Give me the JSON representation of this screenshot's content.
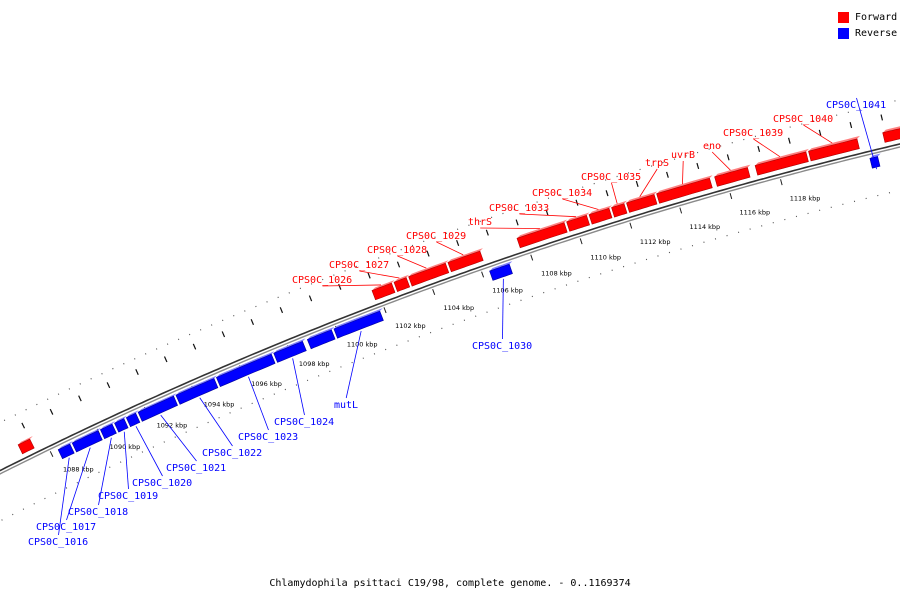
{
  "legend": {
    "forward": {
      "label": "Forward",
      "color": "#ff0000"
    },
    "reverse": {
      "label": "Reverse",
      "color": "#0000ff"
    }
  },
  "caption": "Chlamydophila psittaci C19/98, complete genome. - 0..1169374",
  "ruler": {
    "unit": "kbp",
    "ticks": [
      1088,
      1090,
      1092,
      1094,
      1096,
      1098,
      1100,
      1102,
      1104,
      1106,
      1108,
      1110,
      1112,
      1114,
      1116,
      1118
    ]
  },
  "features": [
    {
      "id": "CPS0C_1016",
      "label": "CPS0C_1016",
      "strand": "reverse",
      "start": 1088.3,
      "end": 1088.8
    },
    {
      "id": "CPS0C_1017",
      "label": "CPS0C_1017",
      "strand": "reverse",
      "start": 1088.9,
      "end": 1090.0
    },
    {
      "id": "CPS0C_1018",
      "label": "CPS0C_1018",
      "strand": "reverse",
      "start": 1090.1,
      "end": 1090.6
    },
    {
      "id": "CPS0C_1019",
      "label": "CPS0C_1019",
      "strand": "reverse",
      "start": 1090.7,
      "end": 1091.1
    },
    {
      "id": "CPS0C_1020",
      "label": "CPS0C_1020",
      "strand": "reverse",
      "start": 1091.2,
      "end": 1091.6
    },
    {
      "id": "CPS0C_1021",
      "label": "CPS0C_1021",
      "strand": "reverse",
      "start": 1091.7,
      "end": 1093.2
    },
    {
      "id": "CPS0C_1022",
      "label": "CPS0C_1022",
      "strand": "reverse",
      "start": 1093.3,
      "end": 1094.9
    },
    {
      "id": "CPS0C_1023",
      "label": "CPS0C_1023",
      "strand": "reverse",
      "start": 1095.0,
      "end": 1097.3
    },
    {
      "id": "CPS0C_1024",
      "label": "CPS0C_1024",
      "strand": "reverse",
      "start": 1097.4,
      "end": 1098.6
    },
    {
      "id": "CPS0C_1025",
      "label": "",
      "strand": "reverse",
      "start": 1098.8,
      "end": 1099.8
    },
    {
      "id": "mutL",
      "label": "mutL",
      "strand": "reverse",
      "start": 1099.9,
      "end": 1101.8
    },
    {
      "id": "CPS0C_1026",
      "label": "CPS0C_1026",
      "strand": "forward",
      "start": 1101.8,
      "end": 1102.6
    },
    {
      "id": "CPS0C_1027",
      "label": "CPS0C_1027",
      "strand": "forward",
      "start": 1102.7,
      "end": 1103.2
    },
    {
      "id": "CPS0C_1028",
      "label": "CPS0C_1028",
      "strand": "forward",
      "start": 1103.3,
      "end": 1104.8
    },
    {
      "id": "CPS0C_1029",
      "label": "CPS0C_1029",
      "strand": "forward",
      "start": 1104.9,
      "end": 1106.2
    },
    {
      "id": "CPS0C_1030",
      "label": "CPS0C_1030",
      "strand": "reverse",
      "start": 1106.3,
      "end": 1107.1
    },
    {
      "id": "thrS",
      "label": "thrS",
      "strand": "forward",
      "start": 1107.7,
      "end": 1109.6
    },
    {
      "id": "CPS0C_1033",
      "label": "CPS0C_1033",
      "strand": "forward",
      "start": 1109.7,
      "end": 1110.5
    },
    {
      "id": "CPS0C_1034",
      "label": "CPS0C_1034",
      "strand": "forward",
      "start": 1110.6,
      "end": 1111.4
    },
    {
      "id": "CPS0C_1035",
      "label": "CPS0C_1035",
      "strand": "forward",
      "start": 1111.5,
      "end": 1112.0
    },
    {
      "id": "trpS",
      "label": "trpS",
      "strand": "forward",
      "start": 1112.1,
      "end": 1113.2
    },
    {
      "id": "uvrB",
      "label": "uvrB",
      "strand": "forward",
      "start": 1113.3,
      "end": 1115.4
    },
    {
      "id": "eno",
      "label": "eno",
      "strand": "forward",
      "start": 1115.6,
      "end": 1116.9
    },
    {
      "id": "CPS0C_1039",
      "label": "CPS0C_1039",
      "strand": "forward",
      "start": 1117.2,
      "end": 1119.2
    },
    {
      "id": "CPS0C_1040",
      "label": "CPS0C_1040",
      "strand": "forward",
      "start": 1119.3,
      "end": 1121.2
    },
    {
      "id": "CPS0C_1041",
      "label": "CPS0C_1041",
      "strand": "reverse",
      "start": 1121.5,
      "end": 1121.8
    },
    {
      "id": "CPS0C_1042",
      "label": "",
      "strand": "forward",
      "start": 1122.2,
      "end": 1123.2
    },
    {
      "id": "CPS0C_1015",
      "label": "",
      "strand": "forward",
      "start": 1087.0,
      "end": 1087.5
    }
  ]
}
